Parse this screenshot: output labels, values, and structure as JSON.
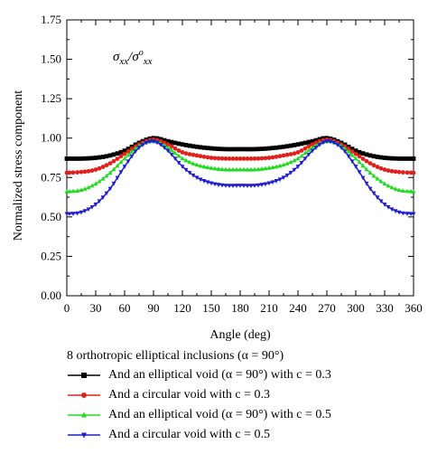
{
  "chart_data": {
    "type": "line",
    "title": "",
    "annotation": "σxx/σoxx",
    "xlabel": "Angle (deg)",
    "ylabel": "Normalized stress component",
    "xlim": [
      0,
      360
    ],
    "ylim": [
      0,
      1.75
    ],
    "xticks": [
      0,
      30,
      60,
      90,
      120,
      150,
      180,
      210,
      240,
      270,
      300,
      330,
      360
    ],
    "yticks": [
      "0.00",
      "0.25",
      "0.50",
      "0.75",
      "1.00",
      "1.25",
      "1.50",
      "1.75"
    ],
    "legend_placement": "bottom",
    "legend_heading": "8 orthotropic elliptical inclusions (α = 90°)",
    "series": [
      {
        "name": "And an elliptical void (α = 90°) with c = 0.3",
        "color": "#000000",
        "marker": "square",
        "x": [
          0,
          15,
          30,
          45,
          60,
          75,
          90,
          105,
          120,
          135,
          150,
          165,
          180,
          195,
          210,
          225,
          240,
          255,
          270,
          285,
          300,
          315,
          330,
          345,
          360
        ],
        "y": [
          0.87,
          0.87,
          0.875,
          0.89,
          0.92,
          0.97,
          1.0,
          0.98,
          0.96,
          0.945,
          0.935,
          0.93,
          0.93,
          0.93,
          0.935,
          0.945,
          0.96,
          0.98,
          1.0,
          0.97,
          0.92,
          0.89,
          0.875,
          0.87,
          0.87
        ]
      },
      {
        "name": "And a circular void with c = 0.3",
        "color": "#e0201b",
        "marker": "circle",
        "x": [
          0,
          15,
          30,
          45,
          60,
          75,
          90,
          105,
          120,
          135,
          150,
          165,
          180,
          195,
          210,
          225,
          240,
          255,
          270,
          285,
          300,
          315,
          330,
          345,
          360
        ],
        "y": [
          0.78,
          0.785,
          0.8,
          0.84,
          0.9,
          0.96,
          0.99,
          0.96,
          0.91,
          0.89,
          0.875,
          0.87,
          0.87,
          0.87,
          0.875,
          0.89,
          0.91,
          0.96,
          0.99,
          0.96,
          0.9,
          0.84,
          0.8,
          0.785,
          0.78
        ]
      },
      {
        "name": "And an elliptical void (α = 90°) with c = 0.5",
        "color": "#1fdc1f",
        "marker": "triangle-up",
        "x": [
          0,
          15,
          30,
          45,
          60,
          75,
          90,
          105,
          120,
          135,
          150,
          165,
          180,
          195,
          210,
          225,
          240,
          255,
          270,
          285,
          300,
          315,
          330,
          345,
          360
        ],
        "y": [
          0.66,
          0.67,
          0.71,
          0.78,
          0.87,
          0.95,
          0.98,
          0.94,
          0.87,
          0.83,
          0.81,
          0.8,
          0.8,
          0.8,
          0.81,
          0.83,
          0.87,
          0.94,
          0.98,
          0.95,
          0.87,
          0.78,
          0.71,
          0.67,
          0.66
        ]
      },
      {
        "name": "And a circular void with c = 0.5",
        "color": "#1f1fd0",
        "marker": "triangle-down",
        "x": [
          0,
          15,
          30,
          45,
          60,
          75,
          90,
          105,
          120,
          135,
          150,
          165,
          180,
          195,
          210,
          225,
          240,
          255,
          270,
          285,
          300,
          315,
          330,
          345,
          360
        ],
        "y": [
          0.52,
          0.53,
          0.58,
          0.68,
          0.82,
          0.94,
          0.98,
          0.92,
          0.82,
          0.75,
          0.715,
          0.7,
          0.7,
          0.7,
          0.715,
          0.75,
          0.82,
          0.92,
          0.98,
          0.94,
          0.82,
          0.68,
          0.58,
          0.53,
          0.52
        ]
      }
    ]
  }
}
